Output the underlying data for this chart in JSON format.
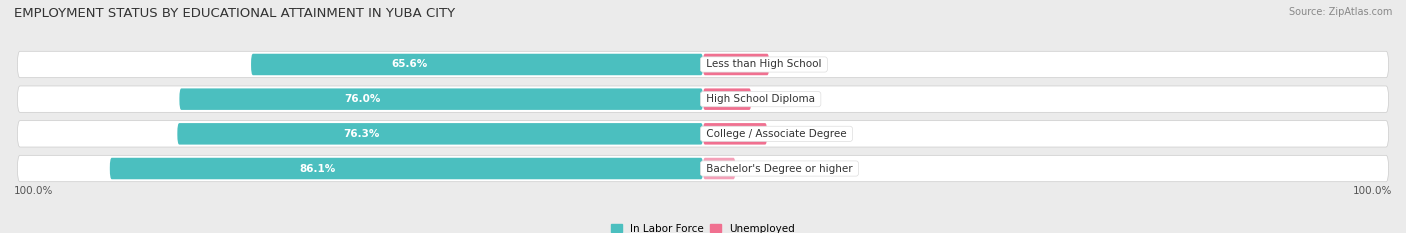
{
  "title": "EMPLOYMENT STATUS BY EDUCATIONAL ATTAINMENT IN YUBA CITY",
  "source": "Source: ZipAtlas.com",
  "categories": [
    "Less than High School",
    "High School Diploma",
    "College / Associate Degree",
    "Bachelor's Degree or higher"
  ],
  "labor_force": [
    65.6,
    76.0,
    76.3,
    86.1
  ],
  "unemployed": [
    9.6,
    7.0,
    9.3,
    4.7
  ],
  "labor_force_color": "#4BBFBF",
  "unemployed_color": "#F07090",
  "unemployed_color_light": "#F4A0B8",
  "background_color": "#ebebeb",
  "row_bg_color": "#ffffff",
  "left_label": "100.0%",
  "right_label": "100.0%",
  "title_fontsize": 9.5,
  "source_fontsize": 7,
  "bar_label_fontsize": 7.5,
  "category_fontsize": 7.5,
  "legend_fontsize": 7.5,
  "axis_label_fontsize": 7.5
}
